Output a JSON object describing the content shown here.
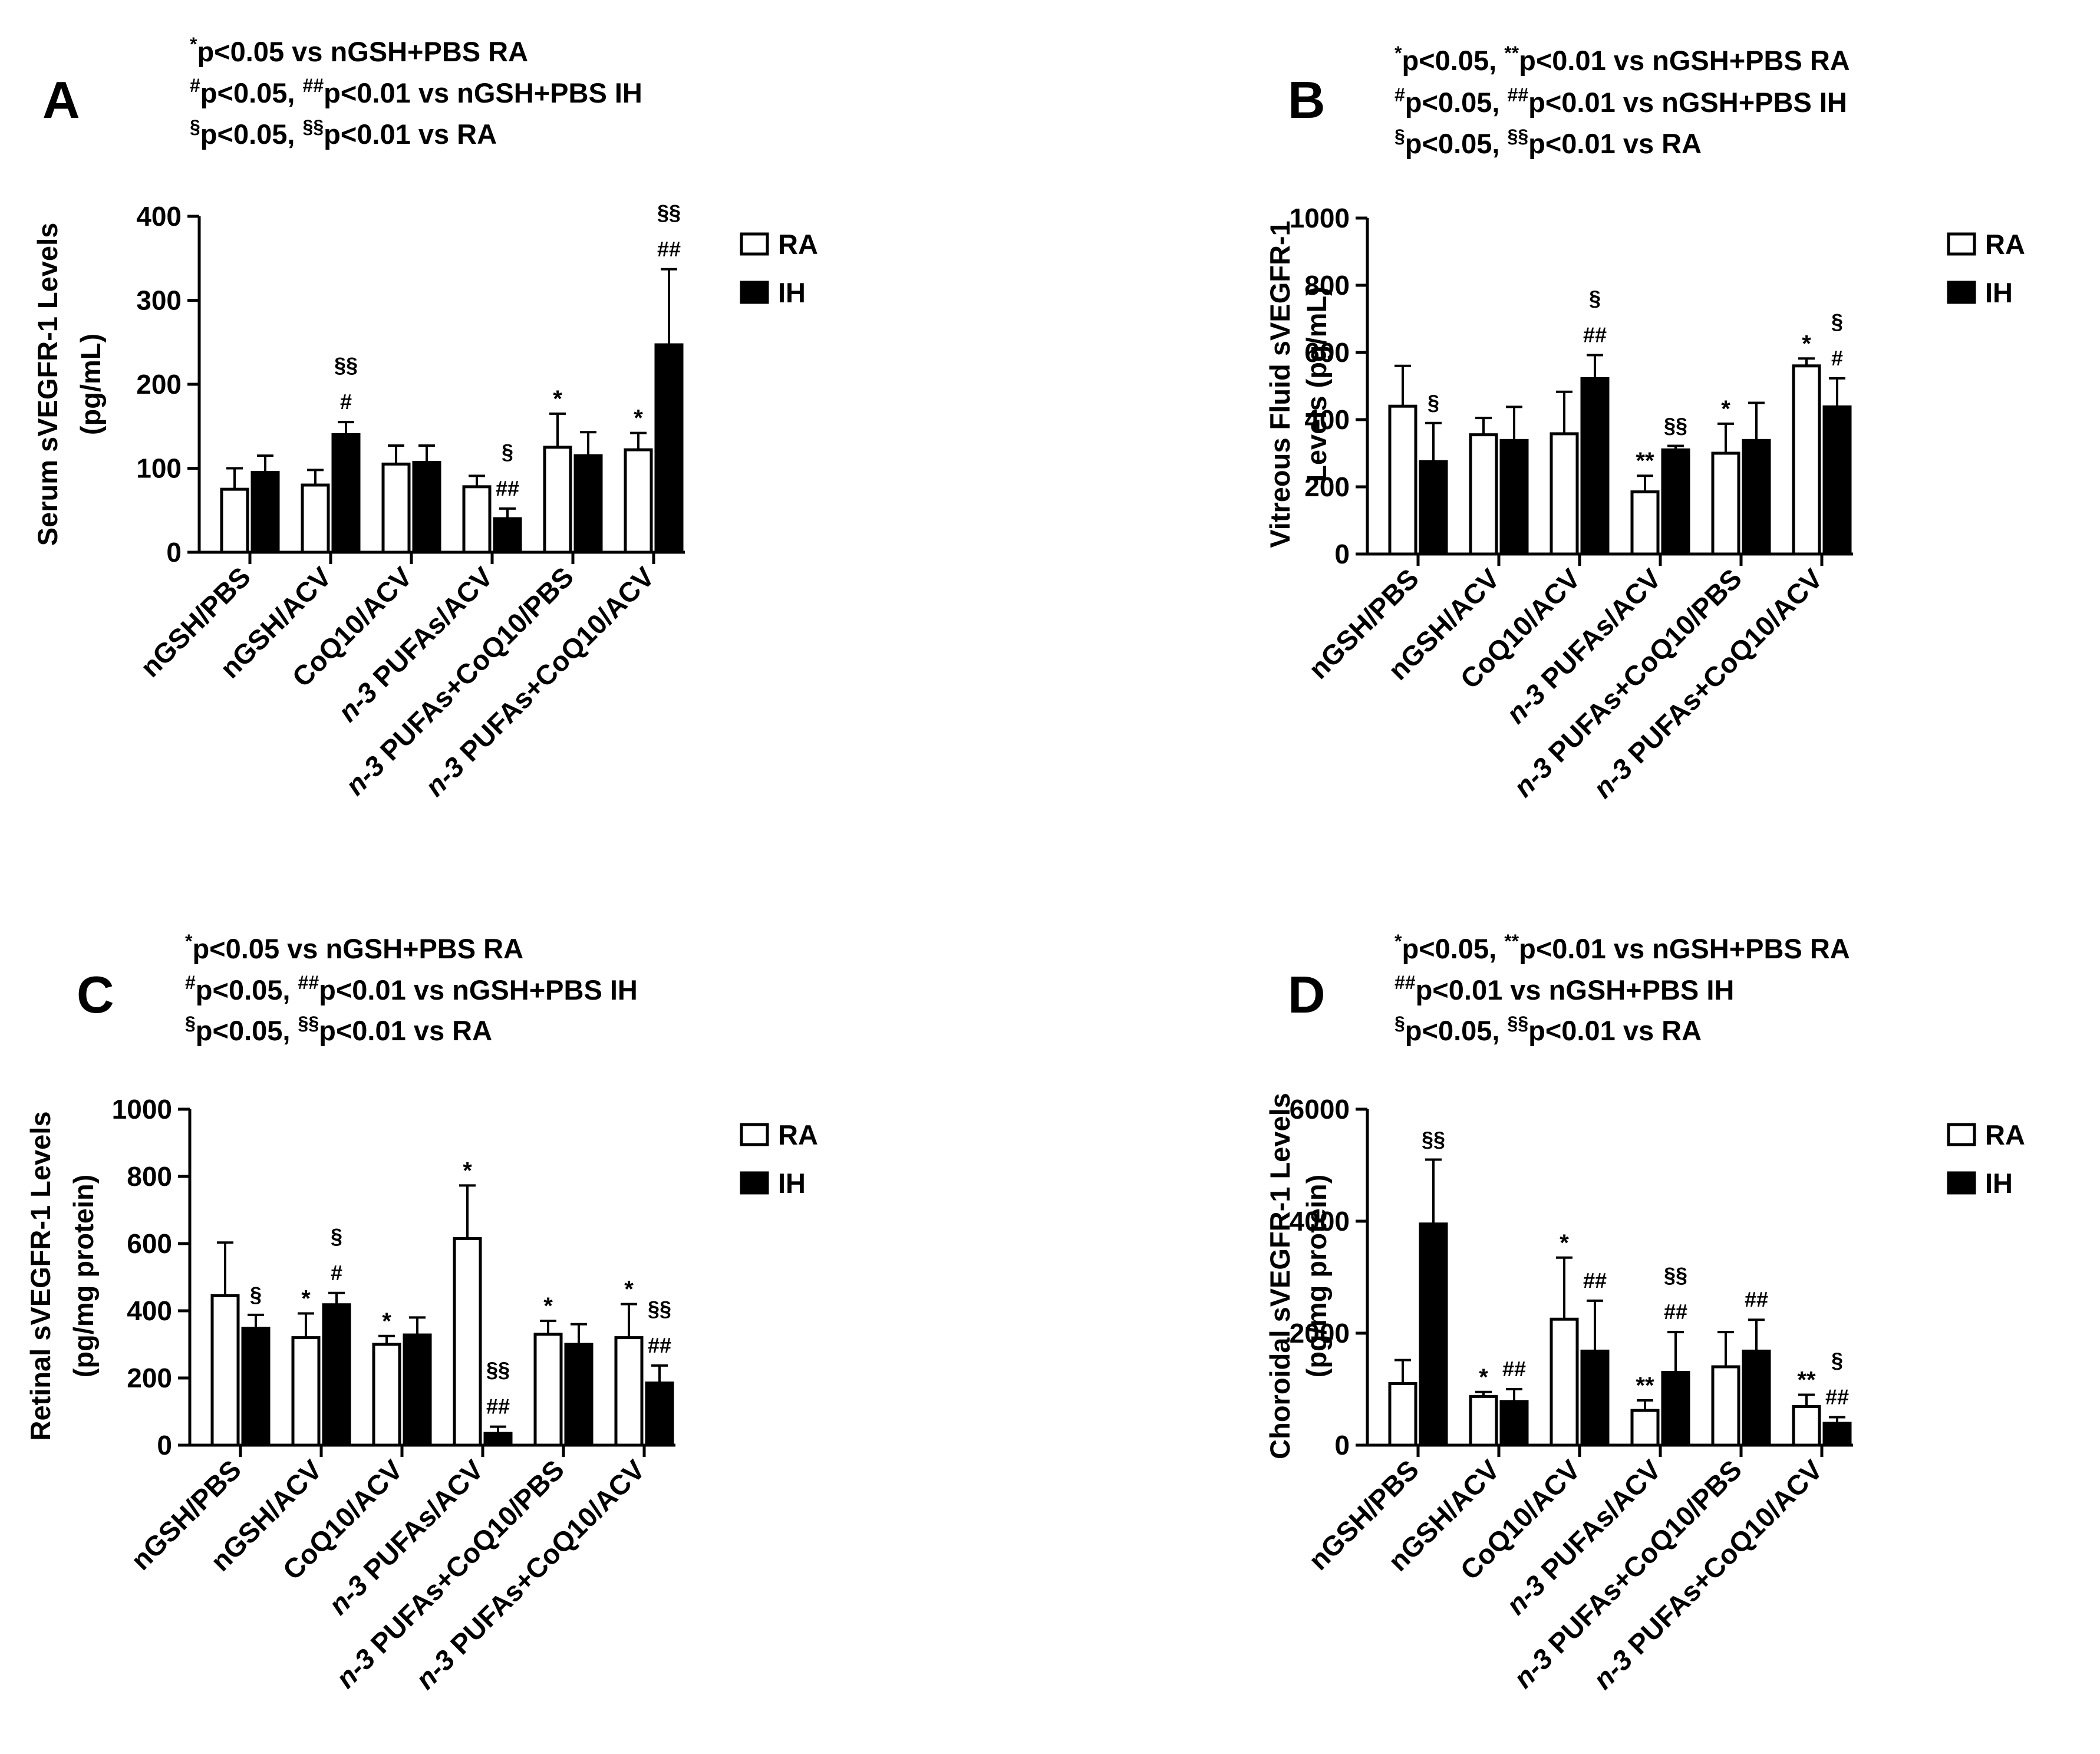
{
  "legend": {
    "ra": "RA",
    "ih": "IH"
  },
  "colors": {
    "ra_fill": "#ffffff",
    "ih_fill": "#000000",
    "stroke": "#000000"
  },
  "categories": [
    "nGSH/PBS",
    "nGSH/ACV",
    "CoQ10/ACV",
    "n-3 PUFAs/ACV",
    "n-3 PUFAs+CoQ10/PBS",
    "n-3 PUFAs+CoQ10/ACV"
  ],
  "chart_data": [
    {
      "type": "bar",
      "panel": "A",
      "title_lines": [
        [
          {
            "s": "*"
          },
          {
            "t": "p<0.05 vs nGSH+PBS RA"
          }
        ],
        [
          {
            "s": "#"
          },
          {
            "t": "p<0.05, "
          },
          {
            "s": "##"
          },
          {
            "t": "p<0.01 vs nGSH+PBS IH"
          }
        ],
        [
          {
            "s": "§"
          },
          {
            "t": "p<0.05, "
          },
          {
            "s": "§§"
          },
          {
            "t": "p<0.01 vs RA"
          }
        ]
      ],
      "ylabel_lines": [
        "Serum sVEGFR-1 Levels",
        "(pg/mL)"
      ],
      "ylim": [
        0,
        400
      ],
      "yticks": [
        0,
        100,
        200,
        300,
        400
      ],
      "series": [
        {
          "name": "RA",
          "values": [
            75,
            80,
            105,
            78,
            125,
            122
          ],
          "errors": [
            25,
            18,
            22,
            13,
            40,
            20
          ],
          "annotations": [
            [],
            [],
            [],
            [],
            [
              "*"
            ],
            [
              "*"
            ]
          ]
        },
        {
          "name": "IH",
          "values": [
            95,
            140,
            107,
            40,
            115,
            247
          ],
          "errors": [
            20,
            15,
            20,
            12,
            28,
            90
          ],
          "annotations": [
            [],
            [
              "#",
              "§§"
            ],
            [],
            [
              "##",
              "§"
            ],
            [],
            [
              "##",
              "§§"
            ]
          ]
        }
      ]
    },
    {
      "type": "bar",
      "panel": "B",
      "title_lines": [
        [
          {
            "s": "*"
          },
          {
            "t": "p<0.05, "
          },
          {
            "s": "**"
          },
          {
            "t": "p<0.01 vs nGSH+PBS RA"
          }
        ],
        [
          {
            "s": "#"
          },
          {
            "t": "p<0.05, "
          },
          {
            "s": "##"
          },
          {
            "t": "p<0.01 vs nGSH+PBS IH"
          }
        ],
        [
          {
            "s": "§"
          },
          {
            "t": "p<0.05, "
          },
          {
            "s": "§§"
          },
          {
            "t": "p<0.01 vs RA"
          }
        ]
      ],
      "ylabel_lines": [
        "Vitreous Fluid sVEGFR-1",
        "Levels (pg/mL)"
      ],
      "ylim": [
        0,
        1000
      ],
      "yticks": [
        0,
        200,
        400,
        600,
        800,
        1000
      ],
      "series": [
        {
          "name": "RA",
          "values": [
            440,
            355,
            358,
            185,
            300,
            560
          ],
          "errors": [
            120,
            50,
            125,
            48,
            88,
            22
          ],
          "annotations": [
            [],
            [],
            [],
            [
              "**"
            ],
            [
              "*"
            ],
            [
              "*"
            ]
          ]
        },
        {
          "name": "IH",
          "values": [
            275,
            338,
            522,
            310,
            338,
            438
          ],
          "errors": [
            115,
            100,
            70,
            12,
            112,
            85
          ],
          "annotations": [
            [
              "§"
            ],
            [],
            [
              "##",
              "§"
            ],
            [
              "§§"
            ],
            [],
            [
              "#",
              "§"
            ]
          ]
        }
      ]
    },
    {
      "type": "bar",
      "panel": "C",
      "title_lines": [
        [
          {
            "s": "*"
          },
          {
            "t": "p<0.05 vs nGSH+PBS RA"
          }
        ],
        [
          {
            "s": "#"
          },
          {
            "t": "p<0.05, "
          },
          {
            "s": "##"
          },
          {
            "t": "p<0.01 vs nGSH+PBS IH"
          }
        ],
        [
          {
            "s": "§"
          },
          {
            "t": "p<0.05, "
          },
          {
            "s": "§§"
          },
          {
            "t": "p<0.01 vs RA"
          }
        ]
      ],
      "ylabel_lines": [
        "Retinal sVEGFR-1 Levels",
        "(pg/mg protein)"
      ],
      "ylim": [
        0,
        1000
      ],
      "yticks": [
        0,
        200,
        400,
        600,
        800,
        1000
      ],
      "series": [
        {
          "name": "RA",
          "values": [
            445,
            320,
            300,
            615,
            330,
            320
          ],
          "errors": [
            158,
            72,
            25,
            158,
            40,
            100
          ],
          "annotations": [
            [],
            [
              "*"
            ],
            [
              "*"
            ],
            [
              "*"
            ],
            [
              "*"
            ],
            [
              "*"
            ]
          ]
        },
        {
          "name": "IH",
          "values": [
            348,
            418,
            328,
            35,
            300,
            185
          ],
          "errors": [
            40,
            35,
            52,
            20,
            60,
            52
          ],
          "annotations": [
            [
              "§"
            ],
            [
              "#",
              "§"
            ],
            [],
            [
              "##",
              "§§"
            ],
            [],
            [
              "##",
              "§§"
            ]
          ]
        }
      ]
    },
    {
      "type": "bar",
      "panel": "D",
      "title_lines": [
        [
          {
            "s": "*"
          },
          {
            "t": "p<0.05, "
          },
          {
            "s": "**"
          },
          {
            "t": "p<0.01 vs nGSH+PBS RA"
          }
        ],
        [
          {
            "s": "##"
          },
          {
            "t": "p<0.01 vs nGSH+PBS IH"
          }
        ],
        [
          {
            "s": "§"
          },
          {
            "t": "p<0.05, "
          },
          {
            "s": "§§"
          },
          {
            "t": "p<0.01 vs RA"
          }
        ]
      ],
      "ylabel_lines": [
        "Choroidal sVEGFR-1 Levels",
        "(pg/mg protein)"
      ],
      "ylim": [
        0,
        6000
      ],
      "yticks": [
        0,
        2000,
        4000,
        6000
      ],
      "series": [
        {
          "name": "RA",
          "values": [
            1100,
            870,
            2250,
            620,
            1400,
            690
          ],
          "errors": [
            420,
            80,
            1100,
            180,
            620,
            210
          ],
          "annotations": [
            [],
            [
              "*"
            ],
            [
              "*"
            ],
            [
              "**"
            ],
            [],
            [
              "**"
            ]
          ]
        },
        {
          "name": "IH",
          "values": [
            3950,
            780,
            1680,
            1300,
            1680,
            390
          ],
          "errors": [
            1150,
            220,
            900,
            720,
            560,
            110
          ],
          "annotations": [
            [
              "§§"
            ],
            [
              "##"
            ],
            [
              "##"
            ],
            [
              "##",
              "§§"
            ],
            [
              "##"
            ],
            [
              "##",
              "§"
            ]
          ]
        }
      ]
    }
  ]
}
